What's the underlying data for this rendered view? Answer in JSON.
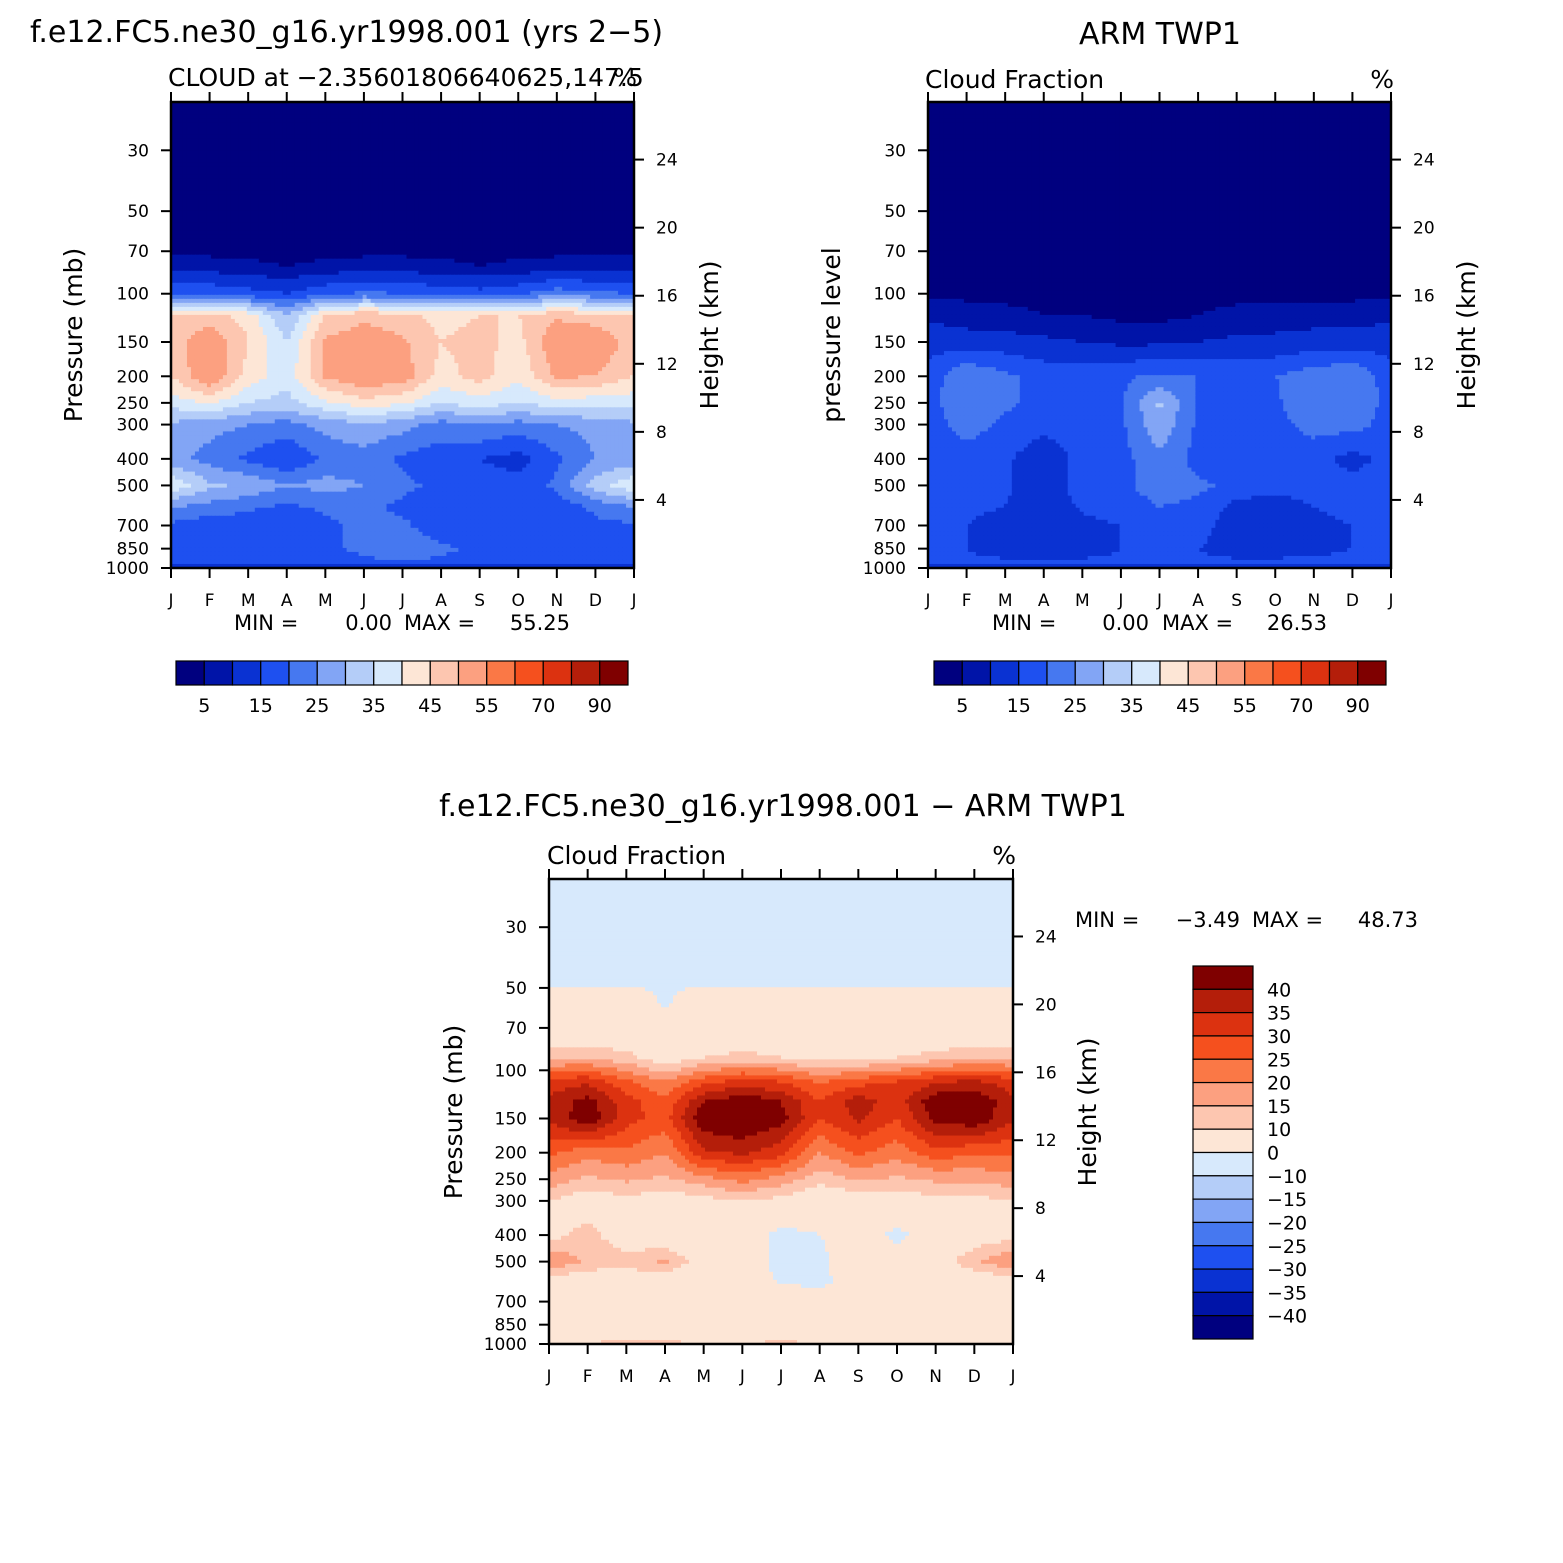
{
  "chart_data": [
    {
      "type": "heatmap",
      "title": "f.e12.FC5.ne30_g16.yr1998.001 (yrs 2−5)",
      "subtitle": "CLOUD at −2.35601806640625,147.5",
      "units": "%",
      "xlabel": "",
      "ylabel": "Pressure (mb)",
      "y2label": "Height (km)",
      "x_ticks": [
        "J",
        "F",
        "M",
        "A",
        "M",
        "J",
        "J",
        "A",
        "S",
        "O",
        "N",
        "D",
        "J"
      ],
      "y_ticks": [
        30,
        50,
        70,
        100,
        150,
        200,
        250,
        300,
        400,
        500,
        700,
        850,
        1000
      ],
      "y2_ticks": [
        24,
        20,
        16,
        12,
        8,
        4
      ],
      "ylim": [
        20,
        1000
      ],
      "stats": {
        "min_label": "MIN =",
        "min": "0.00",
        "max_label": "MAX =",
        "max": "55.25"
      },
      "z_levels": [
        1,
        5,
        10,
        15,
        20,
        25,
        30,
        35,
        40,
        45,
        50,
        55,
        60,
        70,
        80,
        90
      ],
      "rows": [
        {
          "p": 20,
          "v": [
            0,
            0,
            0,
            0,
            0,
            0,
            0,
            0,
            0,
            0,
            0,
            0,
            0
          ]
        },
        {
          "p": 70,
          "v": [
            0,
            0,
            0,
            0,
            0,
            0,
            0,
            0,
            0,
            0,
            0,
            0,
            0
          ]
        },
        {
          "p": 80,
          "v": [
            3,
            3,
            2,
            1,
            2,
            3,
            3,
            2,
            1,
            2,
            3,
            3,
            3
          ]
        },
        {
          "p": 100,
          "v": [
            15,
            14,
            12,
            10,
            14,
            16,
            15,
            13,
            12,
            14,
            18,
            16,
            15
          ]
        },
        {
          "p": 120,
          "v": [
            40,
            42,
            38,
            25,
            40,
            44,
            42,
            38,
            40,
            40,
            44,
            42,
            40
          ]
        },
        {
          "p": 150,
          "v": [
            42,
            50,
            40,
            30,
            46,
            48,
            46,
            40,
            42,
            38,
            50,
            50,
            42
          ]
        },
        {
          "p": 200,
          "v": [
            40,
            50,
            38,
            32,
            46,
            50,
            48,
            38,
            42,
            36,
            46,
            45,
            40
          ]
        },
        {
          "p": 250,
          "v": [
            32,
            36,
            30,
            28,
            34,
            38,
            36,
            30,
            33,
            30,
            33,
            32,
            32
          ]
        },
        {
          "p": 300,
          "v": [
            24,
            22,
            20,
            18,
            22,
            24,
            22,
            18,
            20,
            18,
            20,
            22,
            24
          ]
        },
        {
          "p": 400,
          "v": [
            22,
            18,
            14,
            10,
            16,
            18,
            14,
            12,
            10,
            8,
            14,
            20,
            22
          ]
        },
        {
          "p": 500,
          "v": [
            34,
            26,
            24,
            20,
            22,
            20,
            16,
            14,
            12,
            12,
            16,
            28,
            34
          ]
        },
        {
          "p": 600,
          "v": [
            20,
            18,
            16,
            14,
            16,
            16,
            14,
            12,
            10,
            10,
            12,
            16,
            20
          ]
        },
        {
          "p": 700,
          "v": [
            14,
            12,
            12,
            10,
            14,
            16,
            16,
            12,
            10,
            10,
            12,
            14,
            14
          ]
        },
        {
          "p": 850,
          "v": [
            14,
            12,
            12,
            14,
            14,
            16,
            18,
            16,
            14,
            14,
            14,
            14,
            14
          ]
        },
        {
          "p": 950,
          "v": [
            15,
            14,
            14,
            15,
            14,
            14,
            15,
            14,
            14,
            14,
            14,
            14,
            15
          ]
        },
        {
          "p": 1000,
          "v": [
            4,
            4,
            4,
            4,
            4,
            4,
            4,
            4,
            4,
            4,
            4,
            4,
            4
          ]
        }
      ]
    },
    {
      "type": "heatmap",
      "title": "ARM TWP1",
      "subtitle": "Cloud Fraction",
      "units": "%",
      "xlabel": "",
      "ylabel": "pressure level",
      "y2label": "Height (km)",
      "x_ticks": [
        "J",
        "F",
        "M",
        "A",
        "M",
        "J",
        "J",
        "A",
        "S",
        "O",
        "N",
        "D",
        "J"
      ],
      "y_ticks": [
        30,
        50,
        70,
        100,
        150,
        200,
        250,
        300,
        400,
        500,
        700,
        850,
        1000
      ],
      "y2_ticks": [
        24,
        20,
        16,
        12,
        8,
        4
      ],
      "ylim": [
        20,
        1000
      ],
      "stats": {
        "min_label": "MIN =",
        "min": "0.00",
        "max_label": "MAX =",
        "max": "26.53"
      },
      "z_levels": [
        1,
        5,
        10,
        15,
        20,
        25,
        30,
        35,
        40,
        45,
        50,
        55,
        60,
        70,
        80,
        90
      ],
      "rows": [
        {
          "p": 20,
          "v": [
            0,
            0,
            0,
            0,
            0,
            0,
            0,
            0,
            0,
            0,
            0,
            0,
            0
          ]
        },
        {
          "p": 100,
          "v": [
            0,
            0,
            0,
            0,
            0,
            0,
            0,
            0,
            0,
            0,
            0,
            0,
            0
          ]
        },
        {
          "p": 120,
          "v": [
            4,
            3,
            2,
            1,
            1,
            0,
            0,
            1,
            2,
            3,
            3,
            3,
            4
          ]
        },
        {
          "p": 150,
          "v": [
            8,
            7,
            7,
            6,
            5,
            4,
            4,
            5,
            6,
            6,
            7,
            7,
            8
          ]
        },
        {
          "p": 200,
          "v": [
            12,
            20,
            16,
            13,
            13,
            14,
            16,
            15,
            14,
            15,
            18,
            20,
            12
          ]
        },
        {
          "p": 250,
          "v": [
            13,
            19,
            16,
            13,
            13,
            14,
            26,
            14,
            13,
            14,
            20,
            19,
            13
          ]
        },
        {
          "p": 300,
          "v": [
            13,
            17,
            14,
            12,
            13,
            14,
            24,
            14,
            12,
            13,
            17,
            17,
            13
          ]
        },
        {
          "p": 400,
          "v": [
            12,
            13,
            11,
            6,
            12,
            13,
            19,
            13,
            11,
            13,
            12,
            8,
            12
          ]
        },
        {
          "p": 500,
          "v": [
            13,
            13,
            11,
            6,
            13,
            14,
            17,
            16,
            14,
            12,
            13,
            12,
            13
          ]
        },
        {
          "p": 600,
          "v": [
            12,
            11,
            10,
            5,
            11,
            13,
            15,
            14,
            8,
            7,
            10,
            12,
            12
          ]
        },
        {
          "p": 700,
          "v": [
            11,
            10,
            8,
            5,
            8,
            10,
            13,
            12,
            7,
            6,
            8,
            10,
            11
          ]
        },
        {
          "p": 850,
          "v": [
            11,
            10,
            8,
            6,
            8,
            10,
            11,
            10,
            8,
            8,
            9,
            10,
            11
          ]
        },
        {
          "p": 960,
          "v": [
            11,
            11,
            11,
            11,
            11,
            11,
            11,
            11,
            11,
            11,
            11,
            11,
            11
          ]
        },
        {
          "p": 1000,
          "v": [
            3,
            3,
            3,
            3,
            3,
            3,
            3,
            3,
            3,
            3,
            3,
            3,
            3
          ]
        }
      ]
    },
    {
      "type": "heatmap",
      "title": "f.e12.FC5.ne30_g16.yr1998.001 − ARM TWP1",
      "subtitle": "Cloud Fraction",
      "units": "%",
      "xlabel": "",
      "ylabel": "Pressure (mb)",
      "y2label": "Height (km)",
      "x_ticks": [
        "J",
        "F",
        "M",
        "A",
        "M",
        "J",
        "J",
        "A",
        "S",
        "O",
        "N",
        "D",
        "J"
      ],
      "y_ticks": [
        30,
        50,
        70,
        100,
        150,
        200,
        250,
        300,
        400,
        500,
        700,
        850,
        1000
      ],
      "y2_ticks": [
        24,
        20,
        16,
        12,
        8,
        4
      ],
      "ylim": [
        20,
        1000
      ],
      "stats": {
        "min_label": "MIN =",
        "min": "−3.49",
        "max_label": "MAX =",
        "max": "48.73"
      },
      "z_levels": [
        -40,
        -35,
        -30,
        -25,
        -20,
        -15,
        -10,
        0,
        10,
        15,
        20,
        25,
        30,
        35,
        40
      ],
      "rows": [
        {
          "p": 20,
          "v": [
            -1,
            -1,
            -1,
            -1,
            -1,
            -1,
            -1,
            -1,
            -1,
            -1,
            -1,
            -1,
            -1
          ]
        },
        {
          "p": 48,
          "v": [
            -1,
            -1,
            -1,
            -1,
            -1,
            -1,
            -1,
            -1,
            -1,
            -1,
            -1,
            -1,
            -1
          ]
        },
        {
          "p": 52,
          "v": [
            2,
            2,
            2,
            -1,
            2,
            2,
            2,
            2,
            1,
            2,
            2,
            2,
            2
          ]
        },
        {
          "p": 70,
          "v": [
            3,
            3,
            3,
            1,
            3,
            3,
            3,
            3,
            3,
            3,
            3,
            3,
            3
          ]
        },
        {
          "p": 90,
          "v": [
            14,
            14,
            12,
            6,
            10,
            12,
            10,
            8,
            8,
            10,
            12,
            14,
            14
          ]
        },
        {
          "p": 110,
          "v": [
            32,
            34,
            26,
            20,
            28,
            32,
            30,
            24,
            28,
            30,
            34,
            36,
            32
          ]
        },
        {
          "p": 130,
          "v": [
            36,
            42,
            32,
            26,
            40,
            44,
            40,
            30,
            38,
            32,
            44,
            45,
            36
          ]
        },
        {
          "p": 150,
          "v": [
            36,
            44,
            32,
            28,
            44,
            46,
            42,
            30,
            36,
            30,
            42,
            44,
            36
          ]
        },
        {
          "p": 200,
          "v": [
            26,
            22,
            24,
            20,
            34,
            36,
            32,
            20,
            26,
            22,
            28,
            26,
            26
          ]
        },
        {
          "p": 250,
          "v": [
            18,
            14,
            16,
            14,
            18,
            22,
            18,
            12,
            16,
            14,
            16,
            16,
            18
          ]
        },
        {
          "p": 300,
          "v": [
            10,
            6,
            8,
            6,
            8,
            10,
            8,
            4,
            6,
            6,
            8,
            8,
            10
          ]
        },
        {
          "p": 400,
          "v": [
            8,
            12,
            6,
            4,
            4,
            4,
            -2,
            0,
            4,
            -2,
            4,
            6,
            8
          ]
        },
        {
          "p": 500,
          "v": [
            20,
            14,
            12,
            16,
            6,
            4,
            -2,
            -2,
            6,
            4,
            6,
            14,
            20
          ]
        },
        {
          "p": 600,
          "v": [
            6,
            4,
            5,
            4,
            4,
            2,
            0,
            -1,
            2,
            3,
            4,
            4,
            6
          ]
        },
        {
          "p": 700,
          "v": [
            3,
            3,
            3,
            3,
            3,
            3,
            3,
            3,
            3,
            3,
            3,
            3,
            3
          ]
        },
        {
          "p": 950,
          "v": [
            4,
            4,
            4,
            4,
            4,
            4,
            4,
            4,
            4,
            4,
            4,
            4,
            4
          ]
        },
        {
          "p": 990,
          "v": [
            8,
            10,
            14,
            12,
            10,
            10,
            12,
            10,
            8,
            8,
            8,
            8,
            8
          ]
        },
        {
          "p": 1000,
          "v": [
            2,
            2,
            2,
            2,
            2,
            2,
            2,
            2,
            2,
            2,
            2,
            2,
            2
          ]
        }
      ]
    }
  ],
  "colorbars": [
    {
      "labels": [
        "5",
        "15",
        "25",
        "35",
        "45",
        "55",
        "70",
        "90"
      ],
      "colors": [
        "#00007f",
        "#0014a8",
        "#0a32d2",
        "#1e50f0",
        "#4678f0",
        "#82a5f5",
        "#b4cdf8",
        "#d7e9fc",
        "#fde6d6",
        "#fdc6b0",
        "#fca080",
        "#fa7846",
        "#f5501e",
        "#dc3210",
        "#b41e0a",
        "#7f0000"
      ]
    },
    {
      "labels": [
        "5",
        "15",
        "25",
        "35",
        "45",
        "55",
        "70",
        "90"
      ],
      "colors": [
        "#00007f",
        "#0014a8",
        "#0a32d2",
        "#1e50f0",
        "#4678f0",
        "#82a5f5",
        "#b4cdf8",
        "#d7e9fc",
        "#fde6d6",
        "#fdc6b0",
        "#fca080",
        "#fa7846",
        "#f5501e",
        "#dc3210",
        "#b41e0a",
        "#7f0000"
      ]
    },
    {
      "labels": [
        "−40",
        "−35",
        "−30",
        "−25",
        "−20",
        "−15",
        "−10",
        "0",
        "10",
        "15",
        "20",
        "25",
        "30",
        "35",
        "40"
      ],
      "colors": [
        "#00007f",
        "#0014a8",
        "#0a32d2",
        "#1e50f0",
        "#4678f0",
        "#82a5f5",
        "#b4cdf8",
        "#d7e9fc",
        "#fde6d6",
        "#fdc6b0",
        "#fca080",
        "#fa7846",
        "#f5501e",
        "#dc3210",
        "#b41e0a",
        "#7f0000"
      ]
    }
  ]
}
